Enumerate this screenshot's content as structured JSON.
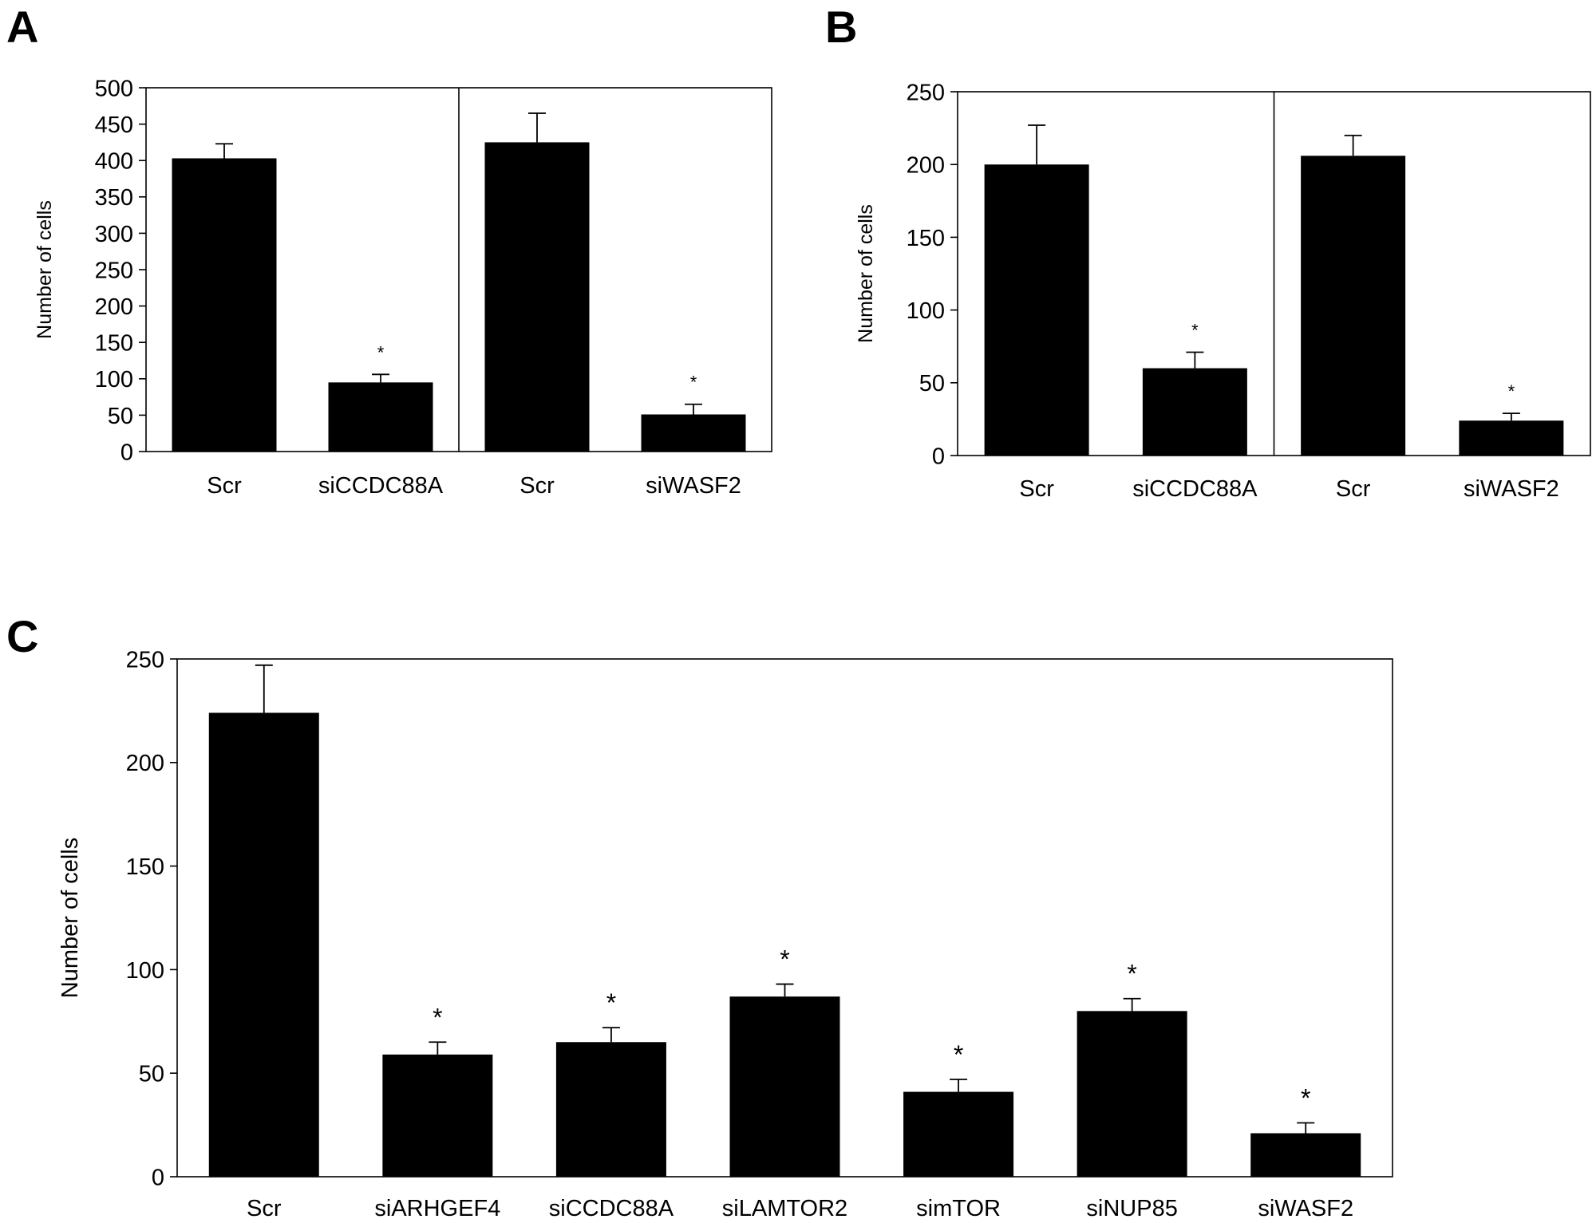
{
  "panels": [
    {
      "letter": "A"
    },
    {
      "letter": "B"
    },
    {
      "letter": "C"
    }
  ],
  "chart_data": [
    {
      "type": "bar",
      "panel": "A",
      "ylabel": "Number of cells",
      "xlabel": "",
      "ylim": [
        0,
        500
      ],
      "yticks": [
        0,
        50,
        100,
        150,
        200,
        250,
        300,
        350,
        400,
        450,
        500
      ],
      "categories": [
        "Scr",
        "siCCDC88A",
        "Scr",
        "siWASF2"
      ],
      "values": [
        403,
        95,
        425,
        51
      ],
      "errors": [
        20,
        11,
        40,
        14
      ],
      "significance": [
        "",
        "*",
        "",
        "*"
      ],
      "group_divider_after_index": 1,
      "bar_color": "#000000",
      "grid": false
    },
    {
      "type": "bar",
      "panel": "B",
      "ylabel": "Number of cells",
      "xlabel": "",
      "ylim": [
        0,
        250
      ],
      "yticks": [
        0,
        50,
        100,
        150,
        200,
        250
      ],
      "categories": [
        "Scr",
        "siCCDC88A",
        "Scr",
        "siWASF2"
      ],
      "values": [
        200,
        60,
        206,
        24
      ],
      "errors": [
        27,
        11,
        14,
        5
      ],
      "significance": [
        "",
        "*",
        "",
        "*"
      ],
      "group_divider_after_index": 1,
      "bar_color": "#000000",
      "grid": false
    },
    {
      "type": "bar",
      "panel": "C",
      "ylabel": "Number of cells",
      "xlabel": "",
      "ylim": [
        0,
        250
      ],
      "yticks": [
        0,
        50,
        100,
        150,
        200,
        250
      ],
      "categories": [
        "Scr",
        "siARHGEF4",
        "siCCDC88A",
        "siLAMTOR2",
        "simTOR",
        "siNUP85",
        "siWASF2"
      ],
      "values": [
        224,
        59,
        65,
        87,
        41,
        80,
        21
      ],
      "errors": [
        23,
        6,
        7,
        6,
        6,
        6,
        5
      ],
      "significance": [
        "",
        "*",
        "*",
        "*",
        "*",
        "*",
        "*"
      ],
      "group_divider_after_index": null,
      "bar_color": "#000000",
      "grid": false
    }
  ]
}
